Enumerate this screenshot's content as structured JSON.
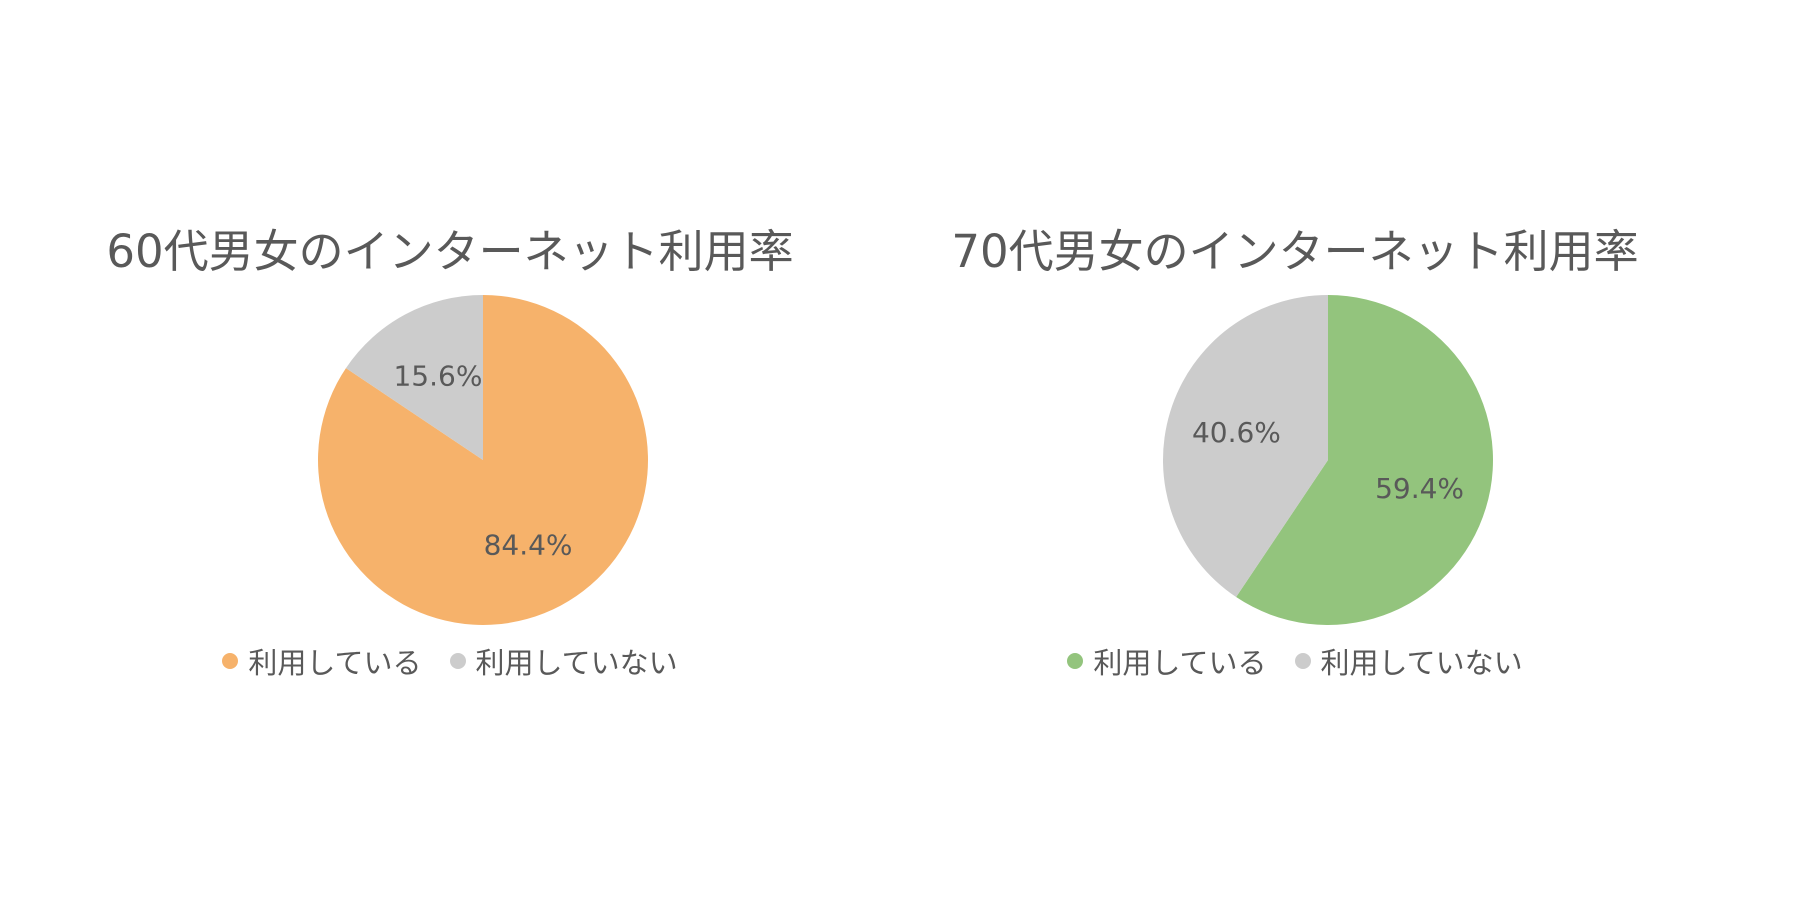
{
  "chart_data": [
    {
      "type": "pie",
      "title": "60代男女のインターネット利用率",
      "categories": [
        "利用している",
        "利用していない"
      ],
      "values": [
        84.4,
        15.6
      ],
      "value_labels": [
        "84.4%",
        "15.6%"
      ],
      "colors": [
        "#F6B26B",
        "#CCCCCC"
      ],
      "legend_position": "bottom"
    },
    {
      "type": "pie",
      "title": "70代男女のインターネット利用率",
      "categories": [
        "利用している",
        "利用していない"
      ],
      "values": [
        59.4,
        40.6
      ],
      "value_labels": [
        "59.4%",
        "40.6%"
      ],
      "colors": [
        "#93C47D",
        "#CCCCCC"
      ],
      "legend_position": "bottom"
    }
  ]
}
